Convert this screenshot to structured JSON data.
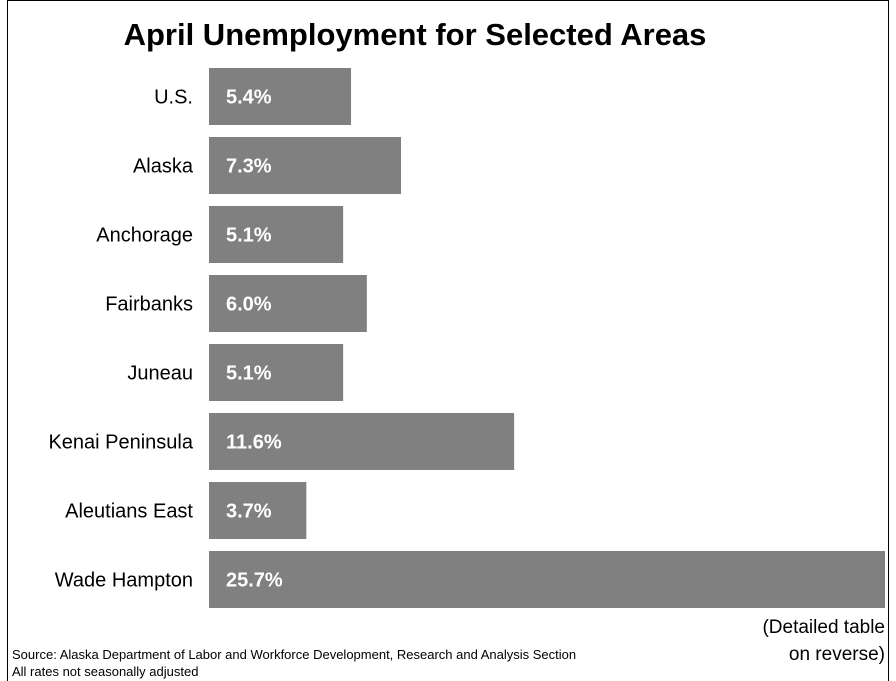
{
  "chart_data": {
    "type": "bar",
    "orientation": "horizontal",
    "title": "April Unemployment for Selected Areas",
    "categories": [
      "U.S.",
      "Alaska",
      "Anchorage",
      "Fairbanks",
      "Juneau",
      "Kenai Peninsula",
      "Aleutians East",
      "Wade Hampton"
    ],
    "values": [
      5.4,
      7.3,
      5.1,
      6.0,
      5.1,
      11.6,
      3.7,
      25.7
    ],
    "value_labels": [
      "5.4%",
      "7.3%",
      "5.1%",
      "6.0%",
      "5.1%",
      "11.6%",
      "3.7%",
      "25.7%"
    ],
    "xlim": [
      0,
      25.7
    ],
    "grid": false,
    "bar_color": "#808080",
    "label_color": "#ffffff"
  },
  "notes": {
    "detail_line1": "(Detailed table",
    "detail_line2": "on reverse)",
    "source": "Source: Alaska Department of Labor and Workforce Development, Research and Analysis Section",
    "adjustment": "All rates not seasonally adjusted"
  }
}
